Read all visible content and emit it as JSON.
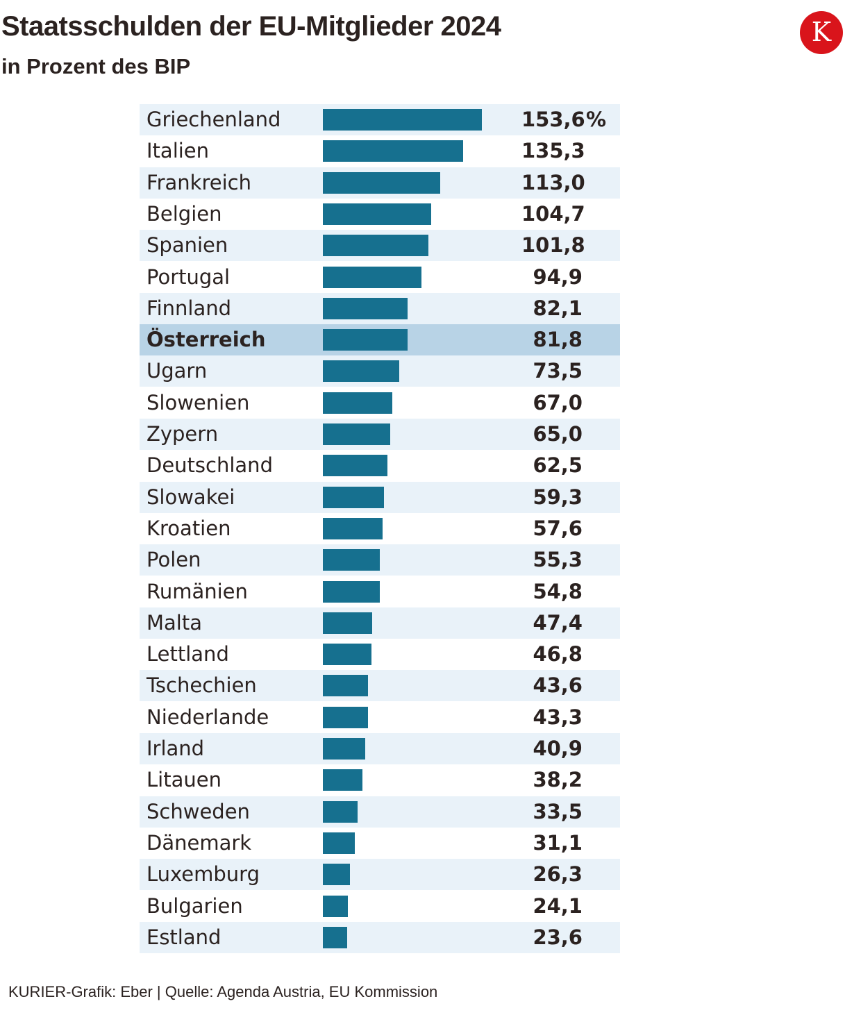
{
  "header": {
    "title": "Staatsschulden der EU-Mitglieder 2024",
    "subtitle": "in Prozent des BIP",
    "logo_letter": "K"
  },
  "footer": {
    "source": "KURIER-Grafik: Eber | Quelle: Agenda Austria, EU Kommission"
  },
  "colors": {
    "bar": "#16708f",
    "stripe": "#e9f2f9",
    "highlight": "#b8d3e6",
    "logo": "#d9141b",
    "text": "#2b2220"
  },
  "chart_data": {
    "type": "bar",
    "orientation": "horizontal",
    "title": "Staatsschulden der EU-Mitglieder 2024",
    "subtitle": "in Prozent des BIP",
    "unit": "%",
    "xlim": [
      0,
      153.6
    ],
    "highlight": "Österreich",
    "categories": [
      "Griechenland",
      "Italien",
      "Frankreich",
      "Belgien",
      "Spanien",
      "Portugal",
      "Finnland",
      "Österreich",
      "Ugarn",
      "Slowenien",
      "Zypern",
      "Deutschland",
      "Slowakei",
      "Kroatien",
      "Polen",
      "Rumänien",
      "Malta",
      "Lettland",
      "Tschechien",
      "Niederlande",
      "Irland",
      "Litauen",
      "Schweden",
      "Dänemark",
      "Luxemburg",
      "Bulgarien",
      "Estland"
    ],
    "values": [
      153.6,
      135.3,
      113.0,
      104.7,
      101.8,
      94.9,
      82.1,
      81.8,
      73.5,
      67.0,
      65.0,
      62.5,
      59.3,
      57.6,
      55.3,
      54.8,
      47.4,
      46.8,
      43.6,
      43.3,
      40.9,
      38.2,
      33.5,
      31.1,
      26.3,
      24.1,
      23.6
    ],
    "value_labels": [
      "153,6",
      "135,3",
      "113,0",
      "104,7",
      "101,8",
      "94,9",
      "82,1",
      "81,8",
      "73,5",
      "67,0",
      "65,0",
      "62,5",
      "59,3",
      "57,6",
      "55,3",
      "54,8",
      "47,4",
      "46,8",
      "43,6",
      "43,3",
      "40,9",
      "38,2",
      "33,5",
      "31,1",
      "26,3",
      "24,1",
      "23,6"
    ]
  }
}
